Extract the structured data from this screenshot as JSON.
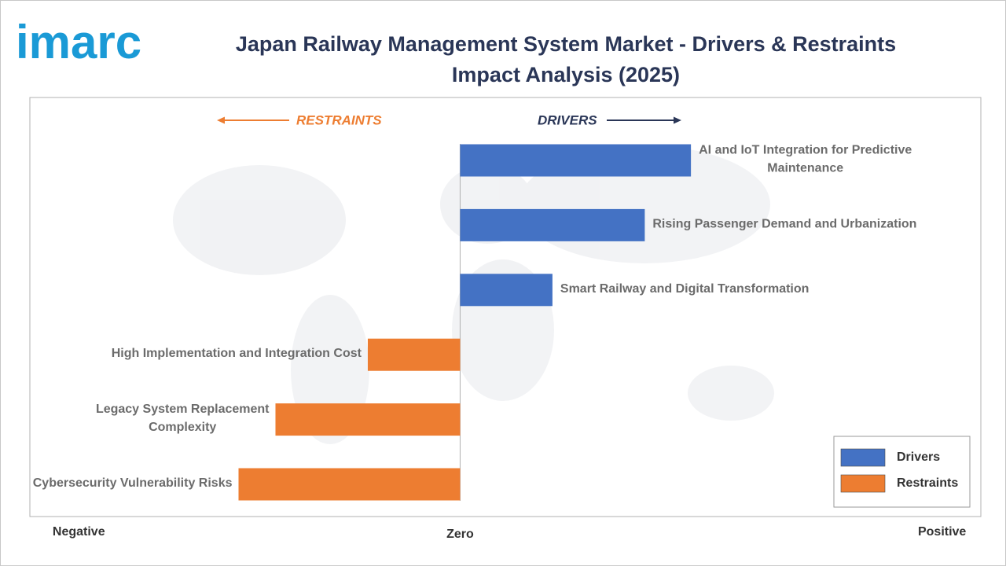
{
  "logo": "imarc",
  "chart_data": {
    "type": "diverging-bar",
    "title": "Japan Railway Management System Market - Drivers & Restraints",
    "subtitle": "Impact Analysis (2025)",
    "annotations": {
      "left": "RESTRAINTS",
      "right": "DRIVERS"
    },
    "categories": [
      "AI and IoT Integration for Predictive\nMaintenance",
      "Rising Passenger Demand and Urbanization",
      "Smart Railway and Digital Transformation",
      "High Implementation and Integration Cost",
      "Legacy System Replacement\nComplexity",
      "Cybersecurity Vulnerability Risks"
    ],
    "series": [
      {
        "name": "Drivers",
        "color": "#4472c4",
        "values": [
          2.5,
          2,
          1,
          null,
          null,
          null
        ]
      },
      {
        "name": "Restraints",
        "color": "#ed7d31",
        "values": [
          null,
          null,
          null,
          -1,
          -2,
          -2.4
        ]
      }
    ],
    "xlim": [
      -4.66,
      5.64
    ],
    "xticks": [
      {
        "value": -4.13,
        "label": "Negative"
      },
      {
        "value": 0,
        "label": "Zero"
      },
      {
        "value": 5.22,
        "label": "Positive"
      }
    ],
    "legend": "bottom-right"
  }
}
